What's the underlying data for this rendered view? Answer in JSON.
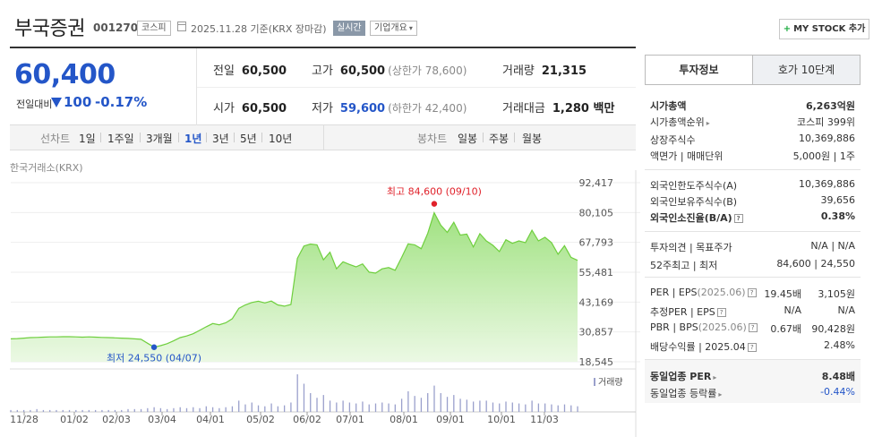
{
  "header": {
    "company": "부국증권",
    "code": "001270",
    "market": "코스피",
    "date_text": "2025.11.28 기준(KRX 장마감)",
    "live_label": "실시간",
    "overview_label": "기업개요",
    "mystock_label": "MY STOCK 추가"
  },
  "price": {
    "current": "60,400",
    "vs_label": "전일대비",
    "change": "100",
    "rate": "-0.17%",
    "prev_close_label": "전일",
    "prev_close": "60,500",
    "high_label": "고가",
    "high": "60,500",
    "upper_limit": "(상한가 78,600)",
    "volume_label": "거래량",
    "volume": "21,315",
    "open_label": "시가",
    "open": "60,500",
    "low_label": "저가",
    "low": "59,600",
    "lower_limit": "(하한가 42,400)",
    "amount_label": "거래대금",
    "amount": "1,280 백만"
  },
  "period_tabs": {
    "line_label": "선차트",
    "line_options": [
      "1일",
      "1주일",
      "3개월",
      "1년",
      "3년",
      "5년",
      "10년"
    ],
    "active": "1년",
    "candle_label": "봉차트",
    "candle_options": [
      "일봉",
      "주봉",
      "월봉"
    ]
  },
  "chart_data": {
    "type": "area",
    "source_label": "한국거래소(KRX)",
    "y_ticks": [
      "92,417",
      "80,105",
      "67,793",
      "55,481",
      "43,169",
      "30,857",
      "18,545"
    ],
    "ylim": [
      18545,
      92417
    ],
    "x_ticks": [
      "11/28",
      "01/02",
      "02/03",
      "03/04",
      "04/01",
      "05/02",
      "06/02",
      "07/01",
      "08/01",
      "09/01",
      "10/01",
      "11/03"
    ],
    "high_annotation": "최고 84,600 (09/10)",
    "low_annotation": "최저 24,550 (04/07)",
    "volume_label": "거래량",
    "values": [
      28000,
      28100,
      28300,
      28500,
      28600,
      28700,
      28800,
      28800,
      28900,
      28900,
      28800,
      28700,
      28800,
      28700,
      28600,
      28500,
      28400,
      28300,
      28200,
      28000,
      27800,
      26200,
      24550,
      25200,
      26000,
      27200,
      28500,
      29200,
      30100,
      31500,
      33000,
      34300,
      33800,
      34600,
      36300,
      40600,
      42000,
      43000,
      43500,
      42800,
      43600,
      42000,
      41500,
      42200,
      61200,
      66300,
      67100,
      66800,
      60600,
      63700,
      56900,
      59800,
      58700,
      57700,
      58900,
      55500,
      55100,
      56900,
      57400,
      56300,
      61600,
      67200,
      66800,
      65200,
      71500,
      80000,
      74900,
      71900,
      76100,
      70800,
      71200,
      65900,
      71400,
      68400,
      66600,
      64000,
      68900,
      67400,
      68400,
      67700,
      72800,
      68400,
      69900,
      67700,
      62900,
      66400,
      61600,
      60400
    ],
    "volume": [
      2,
      2,
      2,
      2,
      3,
      2,
      2,
      2,
      2,
      2,
      2,
      2,
      2,
      2,
      2,
      2,
      2,
      2,
      3,
      3,
      3,
      4,
      5,
      4,
      3,
      4,
      5,
      4,
      5,
      4,
      6,
      5,
      4,
      5,
      6,
      12,
      8,
      10,
      7,
      6,
      9,
      6,
      7,
      10,
      40,
      30,
      20,
      15,
      18,
      12,
      10,
      12,
      10,
      9,
      11,
      8,
      9,
      10,
      9,
      8,
      14,
      22,
      17,
      15,
      20,
      28,
      20,
      16,
      18,
      14,
      13,
      11,
      12,
      12,
      10,
      9,
      11,
      10,
      9,
      8,
      12,
      9,
      9,
      8,
      7,
      8,
      7,
      6
    ]
  },
  "sidebar": {
    "tab_info": "투자정보",
    "tab_order": "호가 10단계",
    "market_cap_label": "시가총액",
    "market_cap": "6,263억원",
    "cap_rank_label": "시가총액순위",
    "cap_rank": "코스피 399위",
    "shares_label": "상장주식수",
    "shares": "10,369,886",
    "face_label": "액면가 | 매매단위",
    "face": "5,000원 | 1주",
    "foreign_limit_label": "외국인한도주식수(A)",
    "foreign_limit": "10,369,886",
    "foreign_hold_label": "외국인보유주식수(B)",
    "foreign_hold": "39,656",
    "foreign_rate_label": "외국인소진율(B/A)",
    "foreign_rate": "0.38%",
    "opinion_label": "투자의견 | 목표주가",
    "opinion": "N/A | N/A",
    "week52_label": "52주최고 | 최저",
    "week52": "84,600 | 24,550",
    "per_label": "PER | EPS",
    "per_year": "(2025.06)",
    "per_v1": "19.45배",
    "per_v2": "3,105원",
    "est_label": "추정PER | EPS",
    "est_v1": "N/A",
    "est_v2": "N/A",
    "pbr_label": "PBR | BPS",
    "pbr_year": "(2025.06)",
    "pbr_v1": "0.67배",
    "pbr_v2": "90,428원",
    "div_label": "배당수익률 | 2025.04",
    "div": "2.48%",
    "sector_per_label": "동일업종 PER",
    "sector_per": "8.48배",
    "sector_rate_label": "동일업종 등락률",
    "sector_rate": "-0.44%"
  }
}
